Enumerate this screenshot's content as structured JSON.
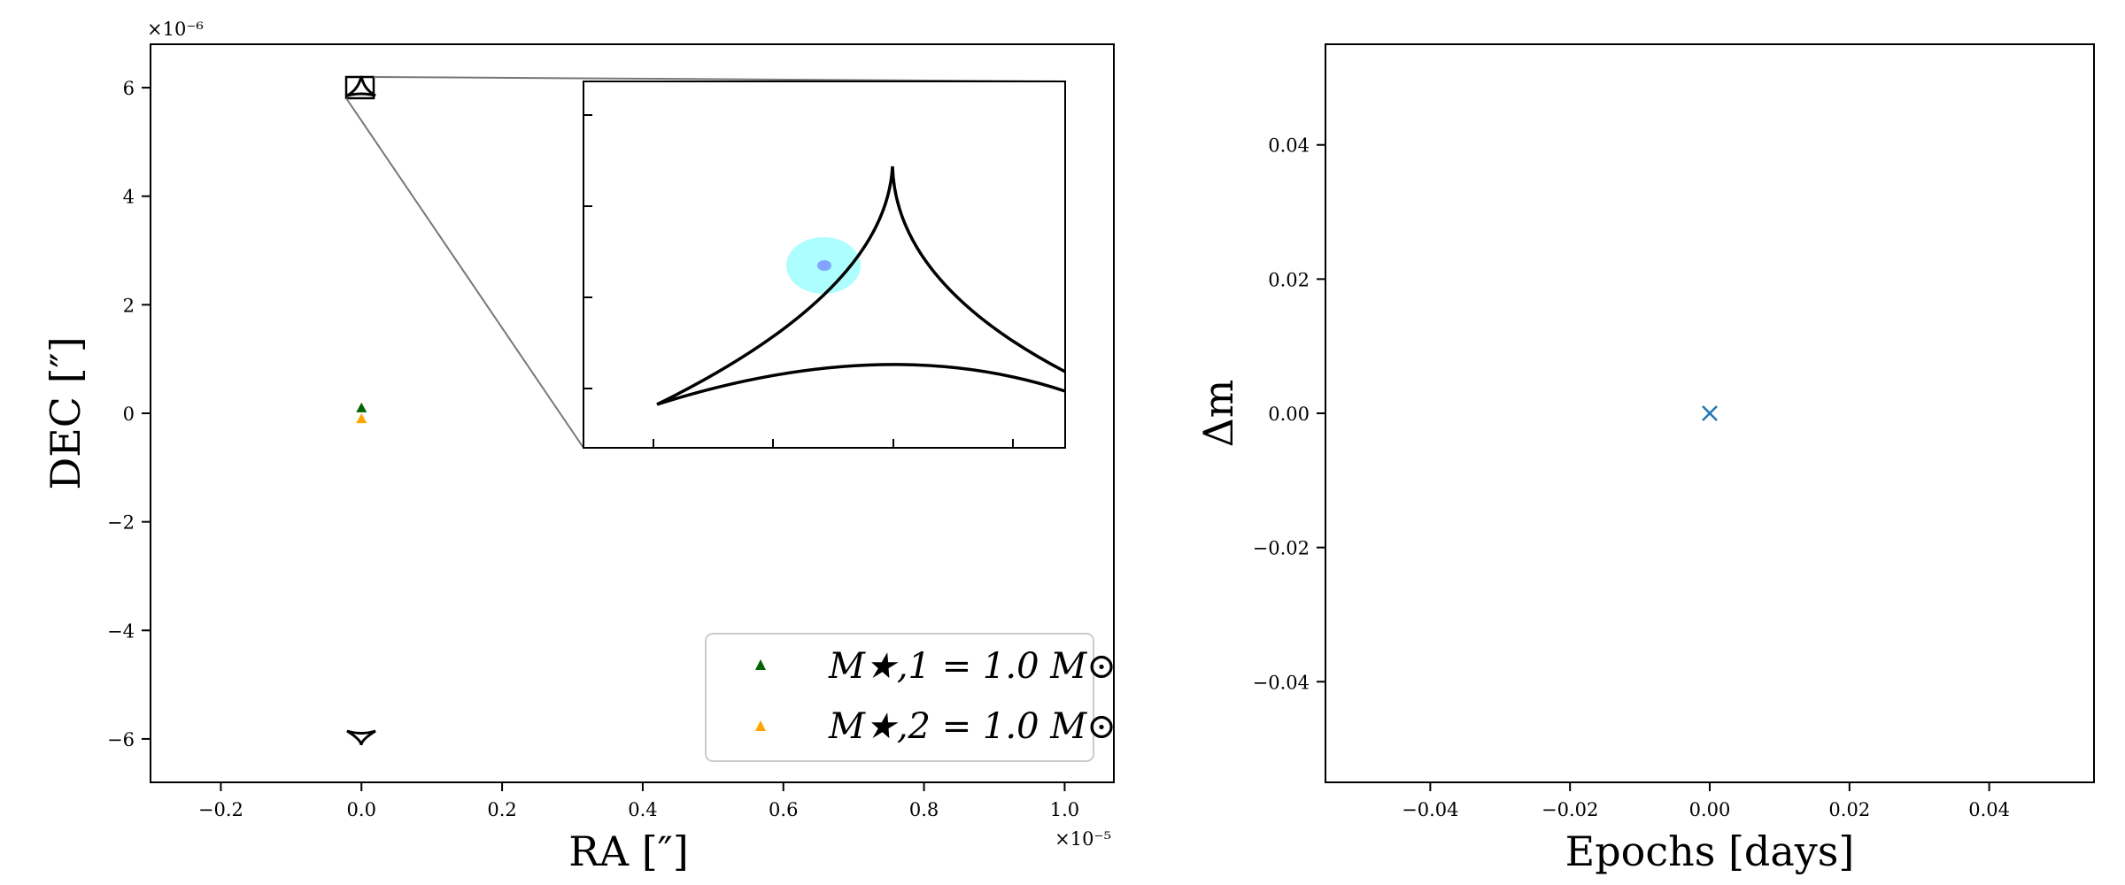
{
  "chart_data": [
    {
      "type": "scatter",
      "name": "caustic-plane",
      "xlabel": "RA [″]",
      "ylabel": "DEC [″]",
      "x_multiplier": "×10⁻⁵",
      "y_multiplier": "×10⁻⁶",
      "xlim": [
        -0.3,
        1.07
      ],
      "ylim": [
        -6.8,
        6.8
      ],
      "xticks": [
        -0.2,
        0.0,
        0.2,
        0.4,
        0.6,
        0.8,
        1.0
      ],
      "xtick_labels": [
        "−0.2",
        "0.0",
        "0.2",
        "0.4",
        "0.6",
        "0.8",
        "1.0"
      ],
      "yticks": [
        -6,
        -4,
        -2,
        0,
        2,
        4,
        6
      ],
      "ytick_labels": [
        "−6",
        "−4",
        "−2",
        "0",
        "2",
        "4",
        "6"
      ],
      "grid": false,
      "legend_position": "lower-right",
      "series": [
        {
          "name": "M★,1 = 1.0 M⊙",
          "color": "#006400",
          "marker": "triangle",
          "points": [
            {
              "x": 0.0,
              "y": 0.1
            }
          ]
        },
        {
          "name": "M★,2 = 1.0 M⊙",
          "color": "#ffa500",
          "marker": "triangle",
          "points": [
            {
              "x": 0.0,
              "y": -0.1
            }
          ]
        }
      ],
      "caustics": [
        {
          "center": {
            "x": 0.0,
            "y": 5.95
          },
          "color": "#000000"
        },
        {
          "center": {
            "x": 0.0,
            "y": -5.95
          },
          "color": "#000000"
        }
      ],
      "zoom_box": {
        "x_range": [
          -0.025,
          0.015
        ],
        "y_range": [
          5.85,
          6.22
        ]
      },
      "inset": {
        "description": "zoom of upper caustic",
        "source_color": "#00ffff",
        "source_core_color": "#6666ff"
      }
    },
    {
      "type": "scatter",
      "name": "magnification-curve",
      "xlabel": "Epochs [days]",
      "ylabel": "Δm",
      "xlim": [
        -0.055,
        0.055
      ],
      "ylim": [
        -0.055,
        0.055
      ],
      "xticks": [
        -0.04,
        -0.02,
        0.0,
        0.02,
        0.04
      ],
      "xtick_labels": [
        "−0.04",
        "−0.02",
        "0.00",
        "0.02",
        "0.04"
      ],
      "yticks": [
        -0.04,
        -0.02,
        0.0,
        0.02,
        0.04
      ],
      "ytick_labels": [
        "−0.04",
        "−0.02",
        "0.00",
        "0.02",
        "0.04"
      ],
      "grid": false,
      "series": [
        {
          "color": "#1f77b4",
          "marker": "x",
          "points": [
            {
              "x": 0.0,
              "y": 0.0
            }
          ]
        }
      ]
    }
  ]
}
